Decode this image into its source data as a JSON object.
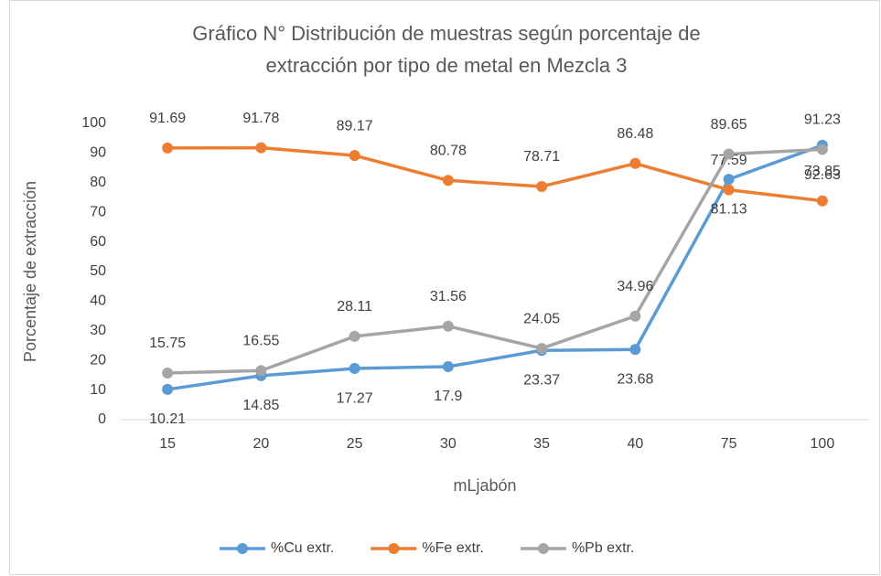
{
  "chart_data": {
    "type": "line",
    "title": [
      "Gráfico N° Distribución de muestras según porcentaje de",
      "extracción por tipo de   metal en Mezcla 3"
    ],
    "x_label": "mLjabón",
    "y_label": "Porcentaje de extracción",
    "categories": [
      "15",
      "20",
      "25",
      "30",
      "35",
      "40",
      "75",
      "100"
    ],
    "series": [
      {
        "name": "%Cu extr.",
        "color": "#5b9bd5",
        "values": [
          10.21,
          14.85,
          17.27,
          17.9,
          23.37,
          23.68,
          81.13,
          92.63
        ],
        "label_side": "below"
      },
      {
        "name": "%Fe extr.",
        "color": "#ed7d31",
        "values": [
          91.69,
          91.78,
          89.17,
          80.78,
          78.71,
          86.48,
          77.59,
          73.85
        ],
        "label_side": "above"
      },
      {
        "name": "%Pb extr.",
        "color": "#a5a5a5",
        "values": [
          15.75,
          16.55,
          28.11,
          31.56,
          24.05,
          34.96,
          89.65,
          91.23
        ],
        "label_side": "above"
      }
    ],
    "ylim": [
      0,
      100
    ],
    "yticks": [
      0,
      10,
      20,
      30,
      40,
      50,
      60,
      70,
      80,
      90,
      100
    ],
    "grid": false,
    "legend": "bottom"
  }
}
